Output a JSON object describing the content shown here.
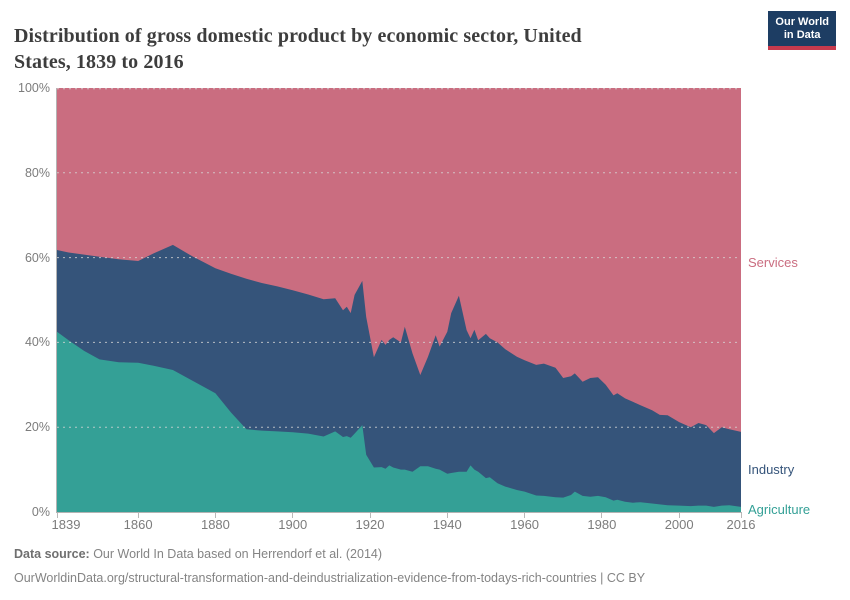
{
  "header": {
    "title_line1": "Distribution of gross domestic product by economic sector, United",
    "title_line2": "States, 1839 to 2016",
    "logo": {
      "line1": "Our World",
      "line2": "in Data"
    }
  },
  "chart_data": {
    "type": "area",
    "stacked": true,
    "unit": "%",
    "title": "Distribution of gross domestic product by economic sector, United States, 1839 to 2016",
    "xrange": [
      1839,
      2016
    ],
    "ylim": [
      0,
      100
    ],
    "grid": "dashed horizontal at 20% steps",
    "legend_position": "right-inline",
    "xticks": [
      1839,
      1860,
      1880,
      1900,
      1920,
      1940,
      1960,
      1980,
      2000,
      2016
    ],
    "ytick_values": [
      0,
      20,
      40,
      60,
      80,
      100
    ],
    "ytick_labels": [
      "0%",
      "20%",
      "40%",
      "60%",
      "80%",
      "100%"
    ],
    "x": [
      1839,
      1842,
      1846,
      1850,
      1855,
      1860,
      1864,
      1869,
      1874,
      1880,
      1884,
      1888,
      1892,
      1896,
      1900,
      1904,
      1908,
      1911,
      1913,
      1914,
      1915,
      1916,
      1918,
      1919,
      1921,
      1923,
      1924,
      1925,
      1926,
      1928,
      1929,
      1931,
      1933,
      1935,
      1937,
      1938,
      1940,
      1941,
      1943,
      1945,
      1946,
      1947,
      1948,
      1950,
      1951,
      1953,
      1955,
      1958,
      1960,
      1963,
      1965,
      1968,
      1970,
      1972,
      1973,
      1975,
      1977,
      1979,
      1981,
      1983,
      1984,
      1986,
      1988,
      1990,
      1993,
      1995,
      1997,
      2000,
      2003,
      2005,
      2007,
      2009,
      2011,
      2013,
      2016
    ],
    "series": [
      {
        "name": "Agriculture",
        "color": "#34a096",
        "values": [
          42.5,
          40.5,
          38.0,
          36.0,
          35.3,
          35.2,
          34.5,
          33.5,
          31.0,
          28.0,
          23.5,
          19.5,
          19.2,
          19.0,
          18.8,
          18.5,
          17.8,
          19.0,
          17.7,
          17.9,
          17.5,
          18.5,
          20.5,
          13.5,
          10.5,
          10.6,
          10.2,
          11.0,
          10.5,
          10.0,
          10.0,
          9.5,
          10.8,
          10.8,
          10.2,
          10.0,
          9.0,
          9.2,
          9.5,
          9.5,
          11.0,
          10.0,
          9.5,
          8.0,
          8.2,
          6.8,
          6.0,
          5.2,
          4.8,
          3.9,
          3.8,
          3.5,
          3.4,
          4.0,
          4.8,
          3.8,
          3.6,
          3.8,
          3.5,
          2.7,
          2.9,
          2.4,
          2.2,
          2.3,
          2.0,
          1.8,
          1.6,
          1.5,
          1.4,
          1.5,
          1.5,
          1.2,
          1.5,
          1.6,
          1.2
        ]
      },
      {
        "name": "Industry",
        "color": "#35547a",
        "values": [
          19.3,
          20.7,
          22.7,
          24.2,
          24.3,
          24.0,
          26.5,
          29.5,
          29.3,
          29.5,
          32.7,
          35.5,
          34.8,
          34.2,
          33.5,
          32.8,
          32.4,
          31.4,
          29.9,
          30.5,
          29.4,
          32.7,
          34.0,
          32.5,
          26.0,
          30.0,
          29.2,
          29.6,
          30.7,
          30.0,
          33.7,
          27.9,
          21.5,
          25.8,
          31.5,
          29.0,
          33.5,
          37.7,
          41.5,
          33.4,
          30.0,
          33.0,
          31.0,
          34.0,
          32.8,
          33.2,
          32.4,
          31.4,
          31.0,
          30.8,
          31.2,
          30.5,
          28.2,
          28.0,
          27.9,
          26.9,
          28.0,
          28.0,
          26.5,
          24.8,
          25.1,
          24.4,
          23.8,
          22.9,
          22.0,
          21.1,
          21.2,
          19.7,
          18.6,
          19.5,
          19.0,
          17.4,
          18.5,
          17.9,
          17.7
        ]
      },
      {
        "name": "Services",
        "color": "#ca6d80",
        "values": [
          38.2,
          38.8,
          39.3,
          39.8,
          40.4,
          40.8,
          39.0,
          37.0,
          39.7,
          42.5,
          43.8,
          45.0,
          46.0,
          46.8,
          47.7,
          48.7,
          49.8,
          49.6,
          52.4,
          51.6,
          53.1,
          48.8,
          45.5,
          54.0,
          63.5,
          59.4,
          60.6,
          59.4,
          58.8,
          60.0,
          56.3,
          62.6,
          67.7,
          63.4,
          58.3,
          61.0,
          57.5,
          53.1,
          49.0,
          57.1,
          59.0,
          57.0,
          59.5,
          58.0,
          59.0,
          60.0,
          61.6,
          63.4,
          64.2,
          65.3,
          65.0,
          66.0,
          68.4,
          68.0,
          67.3,
          69.3,
          68.4,
          68.2,
          70.0,
          72.5,
          72.0,
          73.2,
          74.0,
          74.8,
          76.0,
          77.1,
          77.2,
          78.8,
          80.0,
          79.0,
          79.5,
          81.4,
          80.0,
          80.5,
          81.1
        ]
      }
    ]
  },
  "footer": {
    "source_label": "Data source:",
    "source_text": " Our World In Data based on Herrendorf et al. (2014)",
    "url_line": "OurWorldinData.org/structural-transformation-and-deindustrialization-evidence-from-todays-rich-countries | CC BY"
  },
  "colors": {
    "grid": "#d6d6d6",
    "axis_line": "#b3b3b3",
    "axis_text": "#7c7c7c",
    "title_text": "#3d3d3d",
    "footer_text": "#848484",
    "logo_bg": "#1d3d63",
    "logo_bar": "#c73a4d"
  }
}
